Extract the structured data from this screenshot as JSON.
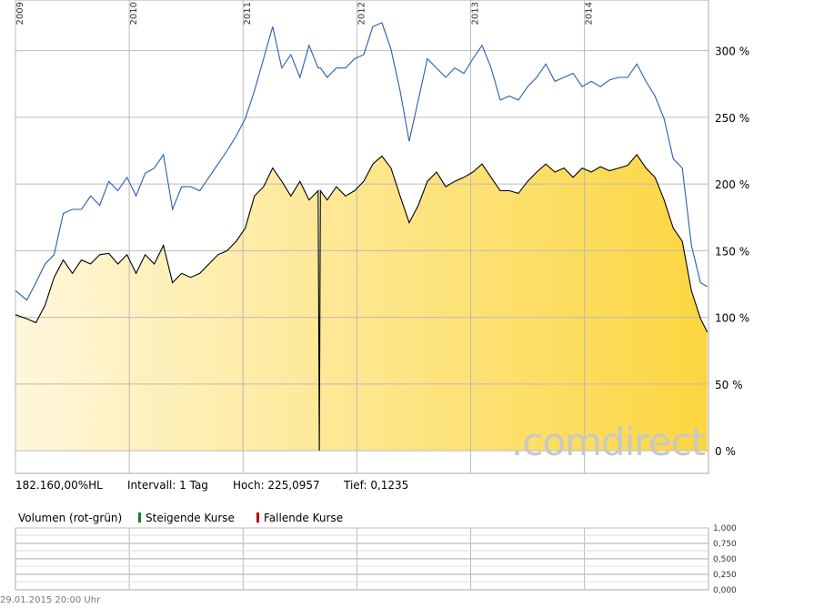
{
  "chart_data": {
    "type": "line",
    "x": [
      2009.0,
      2009.1,
      2009.18,
      2009.26,
      2009.34,
      2009.42,
      2009.5,
      2009.58,
      2009.66,
      2009.74,
      2009.82,
      2009.9,
      2009.98,
      2010.06,
      2010.14,
      2010.22,
      2010.3,
      2010.38,
      2010.46,
      2010.54,
      2010.62,
      2010.7,
      2010.78,
      2010.86,
      2010.94,
      2011.02,
      2011.1,
      2011.18,
      2011.26,
      2011.34,
      2011.42,
      2011.5,
      2011.58,
      2011.66,
      2011.67,
      2011.68,
      2011.74,
      2011.82,
      2011.9,
      2011.98,
      2012.06,
      2012.14,
      2012.22,
      2012.3,
      2012.38,
      2012.46,
      2012.54,
      2012.62,
      2012.7,
      2012.78,
      2012.86,
      2012.94,
      2013.02,
      2013.1,
      2013.18,
      2013.26,
      2013.34,
      2013.42,
      2013.5,
      2013.58,
      2013.66,
      2013.74,
      2013.82,
      2013.9,
      2013.98,
      2014.06,
      2014.14,
      2014.22,
      2014.3,
      2014.38,
      2014.46,
      2014.54,
      2014.62,
      2014.7,
      2014.78,
      2014.86,
      2014.94,
      2015.02,
      2015.08
    ],
    "series": [
      {
        "color": "#2a5db0",
        "values": [
          120,
          113,
          126,
          140,
          147,
          178,
          181,
          181,
          191,
          184,
          202,
          195,
          205,
          191,
          208,
          212,
          222,
          181,
          198,
          198,
          195,
          205,
          215,
          225,
          236,
          249,
          270,
          294,
          318,
          287,
          297,
          280,
          304,
          287,
          287,
          287,
          280,
          287,
          287,
          294,
          297,
          318,
          321,
          301,
          270,
          232,
          263,
          294,
          287,
          280,
          287,
          283,
          294,
          304,
          287,
          263,
          266,
          263,
          273,
          280,
          290,
          277,
          280,
          283,
          273,
          277,
          273,
          278,
          280,
          280,
          290,
          277,
          266,
          249,
          219,
          212,
          154,
          126,
          123
        ]
      },
      {
        "color": "#000000",
        "fill": true,
        "values": [
          102,
          99,
          96,
          109,
          130,
          143,
          133,
          143,
          140,
          147,
          148,
          140,
          147,
          133,
          147,
          140,
          154,
          126,
          133,
          130,
          133,
          140,
          147,
          150,
          157,
          167,
          191,
          198,
          212,
          202,
          191,
          202,
          188,
          195,
          0.1,
          195,
          188,
          198,
          191,
          195,
          202,
          215,
          221,
          212,
          191,
          171,
          184,
          202,
          209,
          198,
          202,
          205,
          209,
          215,
          205,
          195,
          195,
          193,
          202,
          209,
          215,
          209,
          212,
          205,
          212,
          209,
          213,
          210,
          212,
          214,
          222,
          212,
          205,
          188,
          167,
          157,
          120,
          99,
          89
        ]
      }
    ],
    "xlim": [
      2009,
      2015.09
    ],
    "xticks": [
      2009,
      2010,
      2011,
      2012,
      2013,
      2014
    ],
    "ylim": [
      -17,
      338
    ],
    "yticks": [
      {
        "value": 0,
        "label": "0 %"
      },
      {
        "value": 50,
        "label": "50 %"
      },
      {
        "value": 100,
        "label": "100 %"
      },
      {
        "value": 150,
        "label": "150 %"
      },
      {
        "value": 200,
        "label": "200 %"
      },
      {
        "value": 250,
        "label": "250 %"
      },
      {
        "value": 300,
        "label": "300 %"
      }
    ],
    "grid": true,
    "watermark": ".comdirect"
  },
  "info": [
    "182.160,00%HL",
    "Intervall: 1 Tag",
    "Hoch: 225,0957",
    "Tief: 0,1235"
  ],
  "volume_panel": {
    "label": "Volumen (rot-grün)",
    "legend": [
      {
        "name": "Steigende Kurse",
        "color": "#1a7a3a"
      },
      {
        "name": "Fallende Kurse",
        "color": "#c00000"
      }
    ],
    "ylim": [
      0,
      1
    ],
    "yticks": [
      {
        "value": 1,
        "label": "1,000"
      },
      {
        "value": 0.75,
        "label": "0,750"
      },
      {
        "value": 0.5,
        "label": "0,500"
      },
      {
        "value": 0.25,
        "label": "0,250"
      },
      {
        "value": 0,
        "label": "0,000"
      }
    ]
  },
  "timestamp": "29.01.2015 20:00 Uhr"
}
